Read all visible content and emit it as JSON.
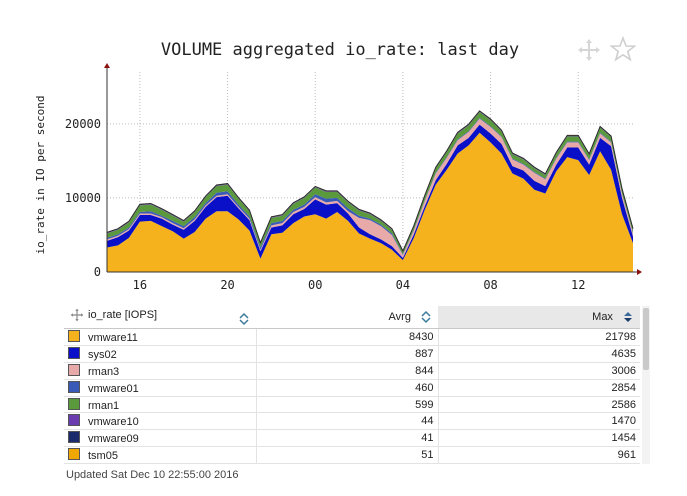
{
  "title": "VOLUME aggregated io_rate: last day",
  "icons": {
    "move": "move-arrows-icon",
    "star": "star-icon"
  },
  "chart_data": {
    "type": "area",
    "ylabel": "io_rate in IO per second",
    "xlabel": "",
    "x_ticks": [
      "16",
      "20",
      "00",
      "04",
      "08",
      "12"
    ],
    "y_ticks": [
      "0",
      "10000",
      "20000"
    ],
    "ylim": [
      0,
      27000
    ],
    "grid": true,
    "stacked": true,
    "x": [
      14.5,
      15,
      15.5,
      16,
      16.5,
      17,
      17.5,
      18,
      18.5,
      19,
      19.5,
      20,
      20.5,
      21,
      21.5,
      22,
      22.5,
      23,
      23.5,
      24,
      24.5,
      25,
      25.5,
      26,
      26.5,
      27,
      27.5,
      28,
      28.5,
      29,
      29.5,
      30,
      30.5,
      31,
      31.5,
      32,
      32.5,
      33,
      33.5,
      34,
      34.5,
      35,
      35.5,
      36,
      36.5,
      37,
      37.5,
      38,
      38.5
    ],
    "series": [
      {
        "name": "vmware11",
        "color": "#f5b21c",
        "values": [
          3300,
          3600,
          4600,
          6800,
          6900,
          6200,
          5500,
          4500,
          5400,
          7200,
          8200,
          8200,
          7100,
          5600,
          1800,
          5100,
          5300,
          6600,
          7500,
          7800,
          7200,
          8100,
          6900,
          5200,
          4500,
          3900,
          3000,
          1600,
          4600,
          8400,
          11800,
          13800,
          16000,
          17100,
          18800,
          17500,
          16000,
          13300,
          12600,
          11100,
          10600,
          13600,
          15500,
          15100,
          13100,
          16300,
          13800,
          7800,
          3900
        ]
      },
      {
        "name": "sys02",
        "color": "#0a10c8",
        "values": [
          900,
          1100,
          1000,
          900,
          800,
          1000,
          900,
          1200,
          1500,
          1600,
          1900,
          2100,
          1500,
          1400,
          1000,
          900,
          1000,
          1200,
          1000,
          2000,
          1900,
          1200,
          1000,
          800,
          600,
          500,
          500,
          300,
          500,
          500,
          600,
          800,
          1100,
          1000,
          1100,
          1200,
          1300,
          1000,
          1100,
          1200,
          1000,
          900,
          1300,
          1700,
          1400,
          1800,
          3200,
          2200,
          900
        ]
      },
      {
        "name": "rman3",
        "color": "#e8aaa8",
        "values": [
          200,
          200,
          200,
          200,
          200,
          200,
          200,
          200,
          200,
          200,
          200,
          200,
          200,
          200,
          200,
          300,
          300,
          300,
          300,
          300,
          300,
          300,
          300,
          1300,
          1900,
          1800,
          1500,
          400,
          500,
          700,
          900,
          800,
          700,
          800,
          800,
          900,
          900,
          900,
          800,
          1100,
          900,
          800,
          700,
          700,
          600,
          600,
          500,
          500,
          400
        ]
      },
      {
        "name": "vmware01",
        "color": "#3a5ab8",
        "values": [
          200,
          200,
          200,
          200,
          300,
          200,
          300,
          300,
          300,
          300,
          400,
          400,
          300,
          300,
          300,
          300,
          300,
          300,
          300,
          400,
          500,
          400,
          400,
          300,
          200,
          200,
          200,
          100,
          100,
          100,
          100,
          100,
          100,
          100,
          100,
          100,
          100,
          100,
          100,
          100,
          100,
          100,
          100,
          100,
          100,
          100,
          100,
          100,
          100
        ]
      },
      {
        "name": "rman1",
        "color": "#5a9a3c",
        "values": [
          600,
          600,
          700,
          900,
          900,
          800,
          700,
          600,
          700,
          800,
          900,
          900,
          800,
          700,
          500,
          700,
          700,
          800,
          900,
          900,
          900,
          800,
          800,
          700,
          600,
          500,
          500,
          300,
          400,
          500,
          600,
          700,
          800,
          800,
          800,
          800,
          700,
          600,
          600,
          500,
          500,
          600,
          700,
          700,
          600,
          700,
          600,
          500,
          400
        ]
      },
      {
        "name": "vmware10",
        "color": "#6a3cb0",
        "values": [
          50,
          50,
          50,
          50,
          50,
          50,
          50,
          50,
          50,
          50,
          50,
          50,
          50,
          50,
          50,
          50,
          50,
          50,
          50,
          50,
          50,
          50,
          50,
          50,
          50,
          50,
          50,
          50,
          50,
          50,
          50,
          50,
          50,
          50,
          50,
          50,
          50,
          50,
          50,
          50,
          50,
          50,
          50,
          50,
          50,
          50,
          50,
          50,
          50
        ]
      },
      {
        "name": "vmware09",
        "color": "#1a2a6a",
        "values": [
          50,
          50,
          50,
          50,
          50,
          50,
          50,
          50,
          50,
          50,
          50,
          50,
          50,
          50,
          50,
          50,
          50,
          50,
          50,
          50,
          50,
          50,
          50,
          50,
          50,
          50,
          50,
          50,
          50,
          50,
          50,
          50,
          50,
          50,
          50,
          50,
          50,
          50,
          50,
          50,
          50,
          50,
          50,
          50,
          50,
          50,
          50,
          50,
          50
        ]
      },
      {
        "name": "tsm05",
        "color": "#f0a800",
        "values": [
          50,
          50,
          50,
          50,
          50,
          50,
          50,
          50,
          50,
          50,
          50,
          50,
          50,
          50,
          50,
          50,
          50,
          50,
          50,
          50,
          50,
          50,
          50,
          50,
          50,
          50,
          50,
          50,
          50,
          50,
          50,
          50,
          50,
          50,
          50,
          50,
          50,
          50,
          50,
          50,
          50,
          50,
          50,
          50,
          50,
          50,
          50,
          50,
          50
        ]
      }
    ]
  },
  "legend": {
    "header": {
      "name": "io_rate [IOPS]",
      "avg": "Avrg",
      "max": "Max"
    },
    "rows": [
      {
        "name": "vmware11",
        "color": "#f5b21c",
        "avg": "8430",
        "max": "21798"
      },
      {
        "name": "sys02",
        "color": "#0a10c8",
        "avg": "887",
        "max": "4635"
      },
      {
        "name": "rman3",
        "color": "#e8aaa8",
        "avg": "844",
        "max": "3006"
      },
      {
        "name": "vmware01",
        "color": "#3a5ab8",
        "avg": "460",
        "max": "2854"
      },
      {
        "name": "rman1",
        "color": "#5a9a3c",
        "avg": "599",
        "max": "2586"
      },
      {
        "name": "vmware10",
        "color": "#6a3cb0",
        "avg": "44",
        "max": "1470"
      },
      {
        "name": "vmware09",
        "color": "#1a2a6a",
        "avg": "41",
        "max": "1454"
      },
      {
        "name": "tsm05",
        "color": "#f0a800",
        "avg": "51",
        "max": "961"
      }
    ]
  },
  "footer": "Updated Sat Dec 10 22:55:00 2016"
}
